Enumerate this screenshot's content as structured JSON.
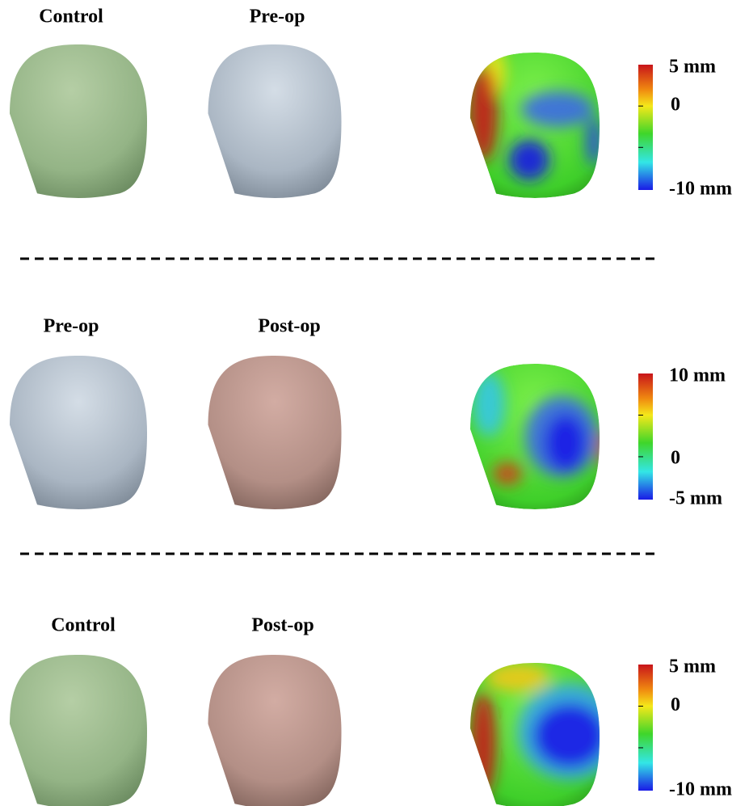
{
  "rows": [
    {
      "left_label": "Control",
      "middle_label": "Pre-op",
      "scale": {
        "top": "5 mm",
        "middle": "0",
        "bottom": "-10 mm"
      }
    },
    {
      "left_label": "Pre-op",
      "middle_label": "Post-op",
      "scale": {
        "top": "10 mm",
        "middle": "0",
        "bottom": "-5 mm"
      }
    },
    {
      "left_label": "Control",
      "middle_label": "Post-op",
      "scale": {
        "top": "5 mm",
        "middle": "0",
        "bottom": "-10 mm"
      }
    }
  ]
}
